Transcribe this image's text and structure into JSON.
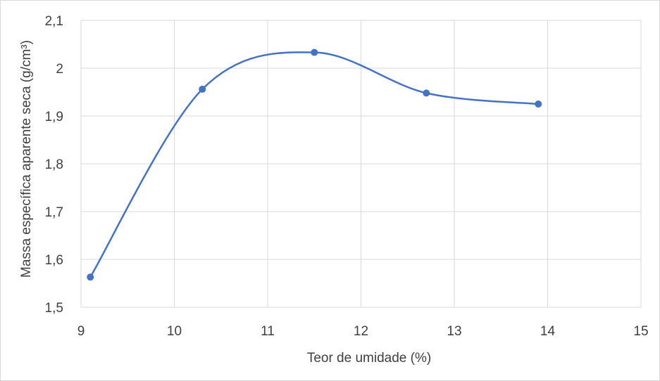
{
  "chart_data": {
    "type": "scatter",
    "title": "",
    "xlabel": "Teor de umidade (%)",
    "ylabel": "Massa específica aparente seca (g/cm³)",
    "xlim": [
      9,
      15
    ],
    "ylim": [
      1.5,
      2.1
    ],
    "x_ticks": [
      "9",
      "10",
      "11",
      "12",
      "13",
      "14",
      "15"
    ],
    "y_ticks": [
      "1,5",
      "1,6",
      "1,7",
      "1,8",
      "1,9",
      "2",
      "2,1"
    ],
    "grid": true,
    "smoothed_line": true,
    "series": [
      {
        "color": "#4472c4",
        "points": [
          {
            "x": 9.1,
            "y": 1.563
          },
          {
            "x": 10.3,
            "y": 1.956
          },
          {
            "x": 11.5,
            "y": 2.033
          },
          {
            "x": 12.7,
            "y": 1.948
          },
          {
            "x": 13.9,
            "y": 1.925
          }
        ]
      }
    ]
  }
}
